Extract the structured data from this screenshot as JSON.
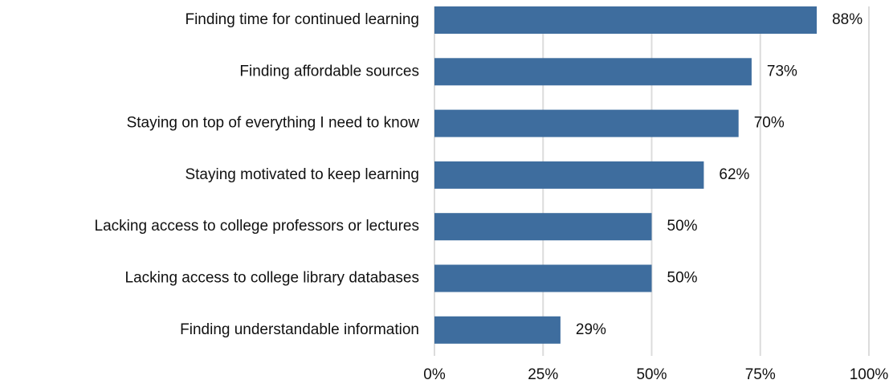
{
  "chart_data": {
    "type": "bar",
    "orientation": "horizontal",
    "categories": [
      "Finding time for continued learning",
      "Finding affordable sources",
      "Staying on top of everything I need to know",
      "Staying motivated to keep learning",
      "Lacking access to college professors or lectures",
      "Lacking access to college library databases",
      "Finding understandable information"
    ],
    "values": [
      88,
      73,
      70,
      62,
      50,
      50,
      29
    ],
    "value_labels": [
      "88%",
      "73%",
      "70%",
      "62%",
      "50%",
      "50%",
      "29%"
    ],
    "color": "#3e6d9e",
    "xlim": [
      0,
      100
    ],
    "xticks": [
      {
        "value": 0,
        "label": "0%"
      },
      {
        "value": 25,
        "label": "25%"
      },
      {
        "value": 50,
        "label": "50%"
      },
      {
        "value": 75,
        "label": "75%"
      },
      {
        "value": 100,
        "label": "100%"
      }
    ],
    "grid": true
  }
}
